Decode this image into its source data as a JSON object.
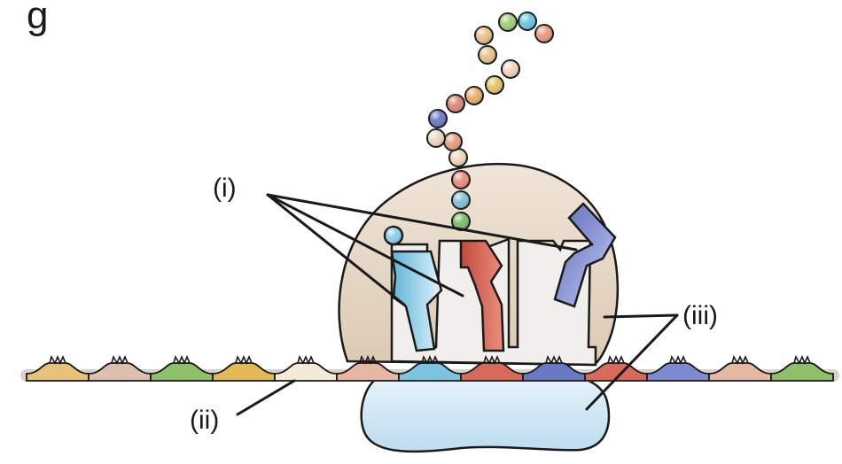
{
  "title_fragment": "g",
  "labels": {
    "trna": "(i)",
    "mrna": "(ii)",
    "ribosome": "(iii)"
  },
  "colors": {
    "large_subunit": "#e8dccb",
    "small_subunit": "#cfe6f2",
    "tunnel": "#f1efec",
    "codons": [
      "#e8c27a",
      "#dcbfae",
      "#8ec06a",
      "#e3b856",
      "#f4ead8",
      "#e6b8a3",
      "#7cc4e0",
      "#d86a5c",
      "#6a79c4",
      "#d86a5c",
      "#7e8bd0",
      "#e6b8a3",
      "#8ec06a"
    ],
    "chain_beads": [
      "#e79a7d",
      "#6ec6e0",
      "#9fd07a",
      "#e6c08a",
      "#e8c48a",
      "#f3d6bb",
      "#e6c36a",
      "#e8b06b",
      "#dd8a7a",
      "#6d7cc8",
      "#ead8c4",
      "#e3a183",
      "#f0d8b8",
      "#e88f80",
      "#84c0d8",
      "#7fbf68"
    ]
  }
}
